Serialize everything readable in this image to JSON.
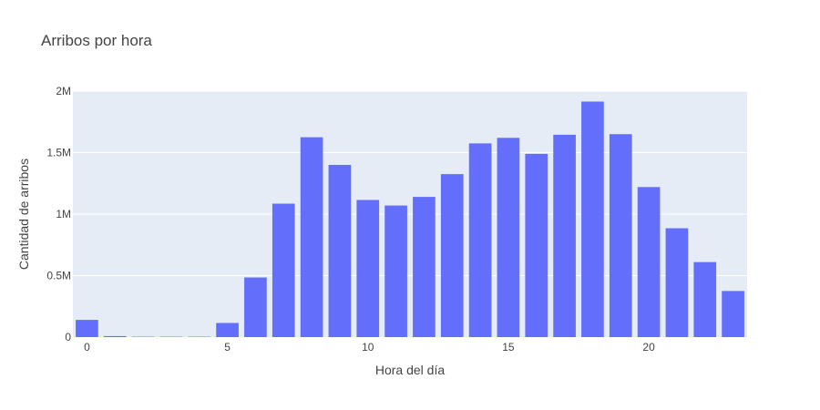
{
  "chart_data": {
    "type": "bar",
    "title": "Arribos por hora",
    "xlabel": "Hora del día",
    "ylabel": "Cantidad de arribos",
    "x": [
      0,
      1,
      2,
      3,
      4,
      5,
      6,
      7,
      8,
      9,
      10,
      11,
      12,
      13,
      14,
      15,
      16,
      17,
      18,
      19,
      20,
      21,
      22,
      23
    ],
    "values": [
      140000,
      8000,
      3000,
      3000,
      3000,
      115000,
      485000,
      1085000,
      1625000,
      1400000,
      1115000,
      1070000,
      1140000,
      1325000,
      1575000,
      1620000,
      1490000,
      1645000,
      1915000,
      1650000,
      1220000,
      885000,
      610000,
      375000
    ],
    "xticks": [
      0,
      5,
      10,
      15,
      20
    ],
    "xtick_labels": [
      "0",
      "5",
      "10",
      "15",
      "20"
    ],
    "yticks": [
      0,
      500000,
      1000000,
      1500000,
      2000000
    ],
    "ytick_labels": [
      "0",
      "0.5M",
      "1M",
      "1.5M",
      "2M"
    ],
    "ylim": [
      0,
      2000000
    ],
    "xlim": [
      -0.5,
      23.5
    ],
    "grid": true,
    "colors": {
      "bar": "#636efa",
      "plot_bg": "#e5ecf6",
      "grid": "#ffffff"
    }
  }
}
